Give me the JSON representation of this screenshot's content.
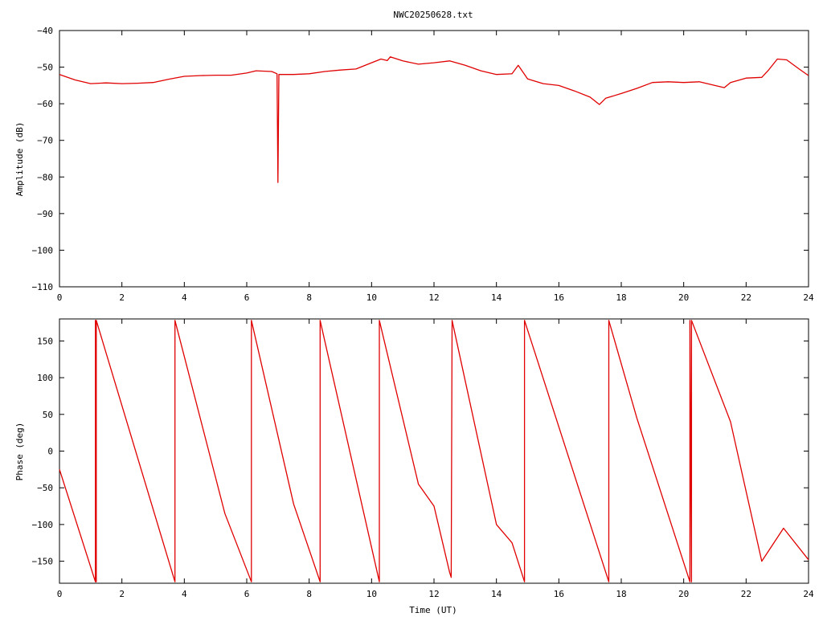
{
  "title": "NWC20250628.txt",
  "colors": {
    "series": "#e00000",
    "axis": "#000000",
    "background": "#ffffff"
  },
  "chart_data": [
    {
      "type": "line",
      "ylabel": "Amplitude (dB)",
      "xlim": [
        0,
        24
      ],
      "ylim": [
        -110,
        -40
      ],
      "x_ticks": [
        0,
        2,
        4,
        6,
        8,
        10,
        12,
        14,
        16,
        18,
        20,
        22,
        24
      ],
      "y_ticks": [
        -110,
        -100,
        -90,
        -80,
        -70,
        -60,
        -50,
        -40
      ],
      "x_tick_labels": [
        "0",
        "2",
        "4",
        "6",
        "8",
        "10",
        "12",
        "14",
        "16",
        "18",
        "20",
        "22",
        "24"
      ],
      "y_tick_labels": [
        "−110",
        "−100",
        "−90",
        "−80",
        "−70",
        "−60",
        "−50",
        "−40"
      ],
      "grid": false,
      "series": [
        {
          "points": [
            [
              0,
              -52
            ],
            [
              0.5,
              -53.5
            ],
            [
              1,
              -54.5
            ],
            [
              1.5,
              -54.3
            ],
            [
              2,
              -54.5
            ],
            [
              2.5,
              -54.4
            ],
            [
              3,
              -54.2
            ],
            [
              3.5,
              -53.3
            ],
            [
              4,
              -52.5
            ],
            [
              4.5,
              -52.3
            ],
            [
              5,
              -52.2
            ],
            [
              5.5,
              -52.2
            ],
            [
              6,
              -51.6
            ],
            [
              6.3,
              -51
            ],
            [
              6.8,
              -51.2
            ],
            [
              6.97,
              -51.8
            ],
            [
              7.0,
              -81.5
            ],
            [
              7.03,
              -52
            ],
            [
              7.5,
              -52
            ],
            [
              8,
              -51.8
            ],
            [
              8.5,
              -51.2
            ],
            [
              9,
              -50.8
            ],
            [
              9.5,
              -50.5
            ],
            [
              10,
              -48.8
            ],
            [
              10.3,
              -47.8
            ],
            [
              10.5,
              -48.2
            ],
            [
              10.6,
              -47.2
            ],
            [
              11,
              -48.3
            ],
            [
              11.5,
              -49.2
            ],
            [
              12,
              -48.8
            ],
            [
              12.5,
              -48.3
            ],
            [
              13,
              -49.5
            ],
            [
              13.5,
              -51
            ],
            [
              14,
              -52
            ],
            [
              14.5,
              -51.8
            ],
            [
              14.7,
              -49.5
            ],
            [
              15,
              -53.2
            ],
            [
              15.5,
              -54.5
            ],
            [
              16,
              -55
            ],
            [
              16.5,
              -56.5
            ],
            [
              17,
              -58.2
            ],
            [
              17.3,
              -60.2
            ],
            [
              17.5,
              -58.5
            ],
            [
              18,
              -57.2
            ],
            [
              18.5,
              -55.8
            ],
            [
              19,
              -54.2
            ],
            [
              19.5,
              -54
            ],
            [
              20,
              -54.2
            ],
            [
              20.5,
              -54
            ],
            [
              21,
              -55
            ],
            [
              21.3,
              -55.6
            ],
            [
              21.5,
              -54.2
            ],
            [
              22,
              -53
            ],
            [
              22.5,
              -52.8
            ],
            [
              22.7,
              -51
            ],
            [
              23,
              -47.8
            ],
            [
              23.3,
              -48
            ],
            [
              23.7,
              -50.5
            ],
            [
              24,
              -52.3
            ]
          ]
        }
      ]
    },
    {
      "type": "line",
      "xlabel": "Time (UT)",
      "ylabel": "Phase (deg)",
      "xlim": [
        0,
        24
      ],
      "ylim": [
        -180,
        180
      ],
      "x_ticks": [
        0,
        2,
        4,
        6,
        8,
        10,
        12,
        14,
        16,
        18,
        20,
        22,
        24
      ],
      "y_ticks": [
        -150,
        -100,
        -50,
        0,
        50,
        100,
        150
      ],
      "x_tick_labels": [
        "0",
        "2",
        "4",
        "6",
        "8",
        "10",
        "12",
        "14",
        "16",
        "18",
        "20",
        "22",
        "24"
      ],
      "y_tick_labels": [
        "−150",
        "−100",
        "−50",
        "0",
        "50",
        "100",
        "150"
      ],
      "grid": false,
      "series": [
        {
          "points": [
            [
              0,
              -25
            ],
            [
              1.15,
              -178
            ],
            [
              1.15,
              178
            ],
            [
              1.18,
              -178
            ],
            [
              1.18,
              178
            ],
            [
              3.7,
              -178
            ],
            [
              3.7,
              178
            ],
            [
              5.3,
              -85
            ],
            [
              6.15,
              -178
            ],
            [
              6.15,
              178
            ],
            [
              7.5,
              -72
            ],
            [
              8.35,
              -178
            ],
            [
              8.35,
              178
            ],
            [
              10.25,
              -178
            ],
            [
              10.25,
              178
            ],
            [
              11.5,
              -45
            ],
            [
              12.0,
              -75
            ],
            [
              12.5,
              -165
            ],
            [
              12.55,
              -172
            ],
            [
              12.58,
              178
            ],
            [
              14.0,
              -100
            ],
            [
              14.5,
              -125
            ],
            [
              14.9,
              -178
            ],
            [
              14.9,
              178
            ],
            [
              17.6,
              -178
            ],
            [
              17.6,
              178
            ],
            [
              18.5,
              45
            ],
            [
              20.2,
              -178
            ],
            [
              20.2,
              178
            ],
            [
              20.25,
              -178
            ],
            [
              20.25,
              178
            ],
            [
              21.5,
              40
            ],
            [
              22.5,
              -150
            ],
            [
              23.2,
              -105
            ],
            [
              24,
              -148
            ]
          ]
        }
      ]
    }
  ]
}
